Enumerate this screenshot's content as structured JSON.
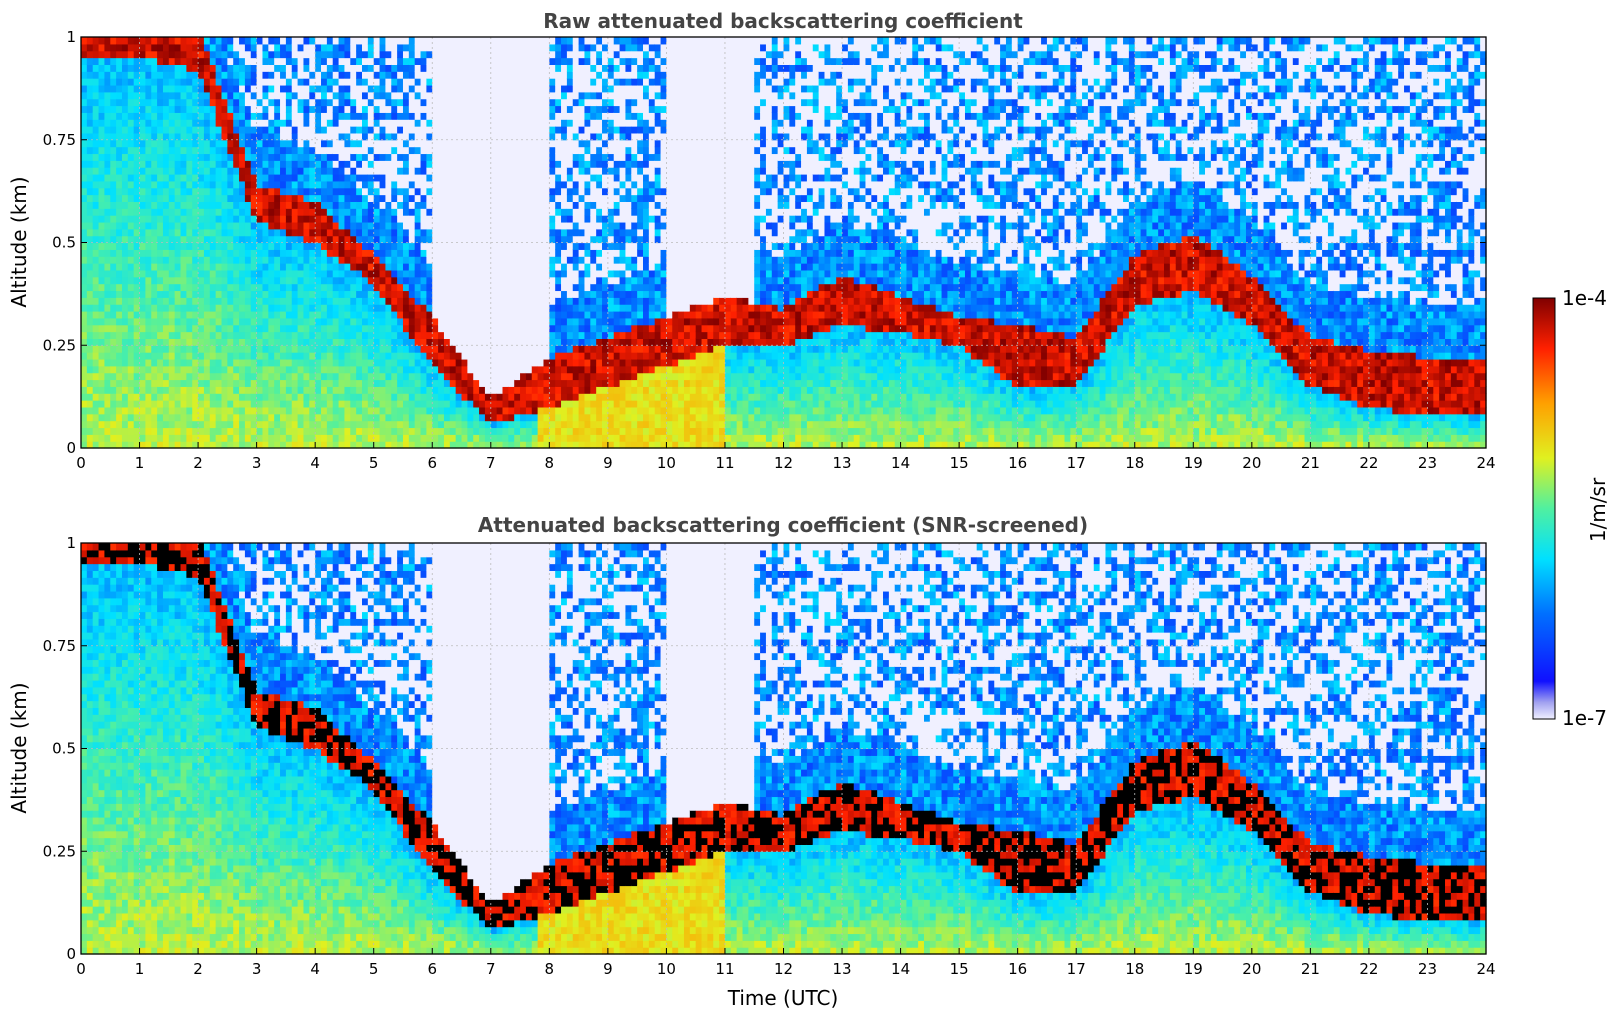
{
  "chart_data": [
    {
      "type": "heatmap",
      "title": "Raw attenuated backscattering coefficient",
      "xlabel": "",
      "ylabel": "Altitude (km)",
      "xlim": [
        0,
        24
      ],
      "ylim": [
        0,
        1
      ],
      "x_ticks": [
        "0",
        "1",
        "2",
        "3",
        "4",
        "5",
        "6",
        "7",
        "8",
        "9",
        "10",
        "11",
        "12",
        "13",
        "14",
        "15",
        "16",
        "17",
        "18",
        "19",
        "20",
        "21",
        "22",
        "23",
        "24"
      ],
      "y_ticks": [
        "0",
        "0.25",
        "0.5",
        "0.75",
        "1"
      ],
      "grid": true,
      "layer_top_km": [
        1.0,
        1.0,
        1.0,
        0.62,
        0.58,
        0.45,
        0.3,
        0.1,
        0.2,
        0.25,
        0.3,
        0.35,
        0.32,
        0.4,
        0.35,
        0.3,
        0.28,
        0.25,
        0.45,
        0.5,
        0.4,
        0.25,
        0.22,
        0.2
      ],
      "layer_bottom_km": [
        0.95,
        0.95,
        0.92,
        0.55,
        0.5,
        0.4,
        0.2,
        0.06,
        0.1,
        0.15,
        0.2,
        0.25,
        0.25,
        0.3,
        0.28,
        0.25,
        0.15,
        0.15,
        0.35,
        0.38,
        0.3,
        0.15,
        0.1,
        0.08
      ],
      "screened": false
    },
    {
      "type": "heatmap",
      "title": "Attenuated backscattering coefficient (SNR-screened)",
      "xlabel": "Time (UTC)",
      "ylabel": "Altitude (km)",
      "xlim": [
        0,
        24
      ],
      "ylim": [
        0,
        1
      ],
      "x_ticks": [
        "0",
        "1",
        "2",
        "3",
        "4",
        "5",
        "6",
        "7",
        "8",
        "9",
        "10",
        "11",
        "12",
        "13",
        "14",
        "15",
        "16",
        "17",
        "18",
        "19",
        "20",
        "21",
        "22",
        "23",
        "24"
      ],
      "y_ticks": [
        "0",
        "0.25",
        "0.5",
        "0.75",
        "1"
      ],
      "grid": true,
      "layer_top_km": [
        1.0,
        1.0,
        1.0,
        0.62,
        0.58,
        0.45,
        0.3,
        0.1,
        0.2,
        0.25,
        0.3,
        0.35,
        0.32,
        0.4,
        0.35,
        0.3,
        0.28,
        0.25,
        0.45,
        0.5,
        0.4,
        0.25,
        0.22,
        0.2
      ],
      "layer_bottom_km": [
        0.95,
        0.95,
        0.92,
        0.55,
        0.5,
        0.4,
        0.2,
        0.06,
        0.1,
        0.15,
        0.2,
        0.25,
        0.25,
        0.3,
        0.28,
        0.25,
        0.15,
        0.15,
        0.35,
        0.38,
        0.3,
        0.15,
        0.1,
        0.08
      ],
      "screened": true
    }
  ],
  "colorbar": {
    "max_label": "1e-4",
    "min_label": "1e-7",
    "unit_label": "1/m/sr",
    "colormap": "jet",
    "scale": "log"
  }
}
